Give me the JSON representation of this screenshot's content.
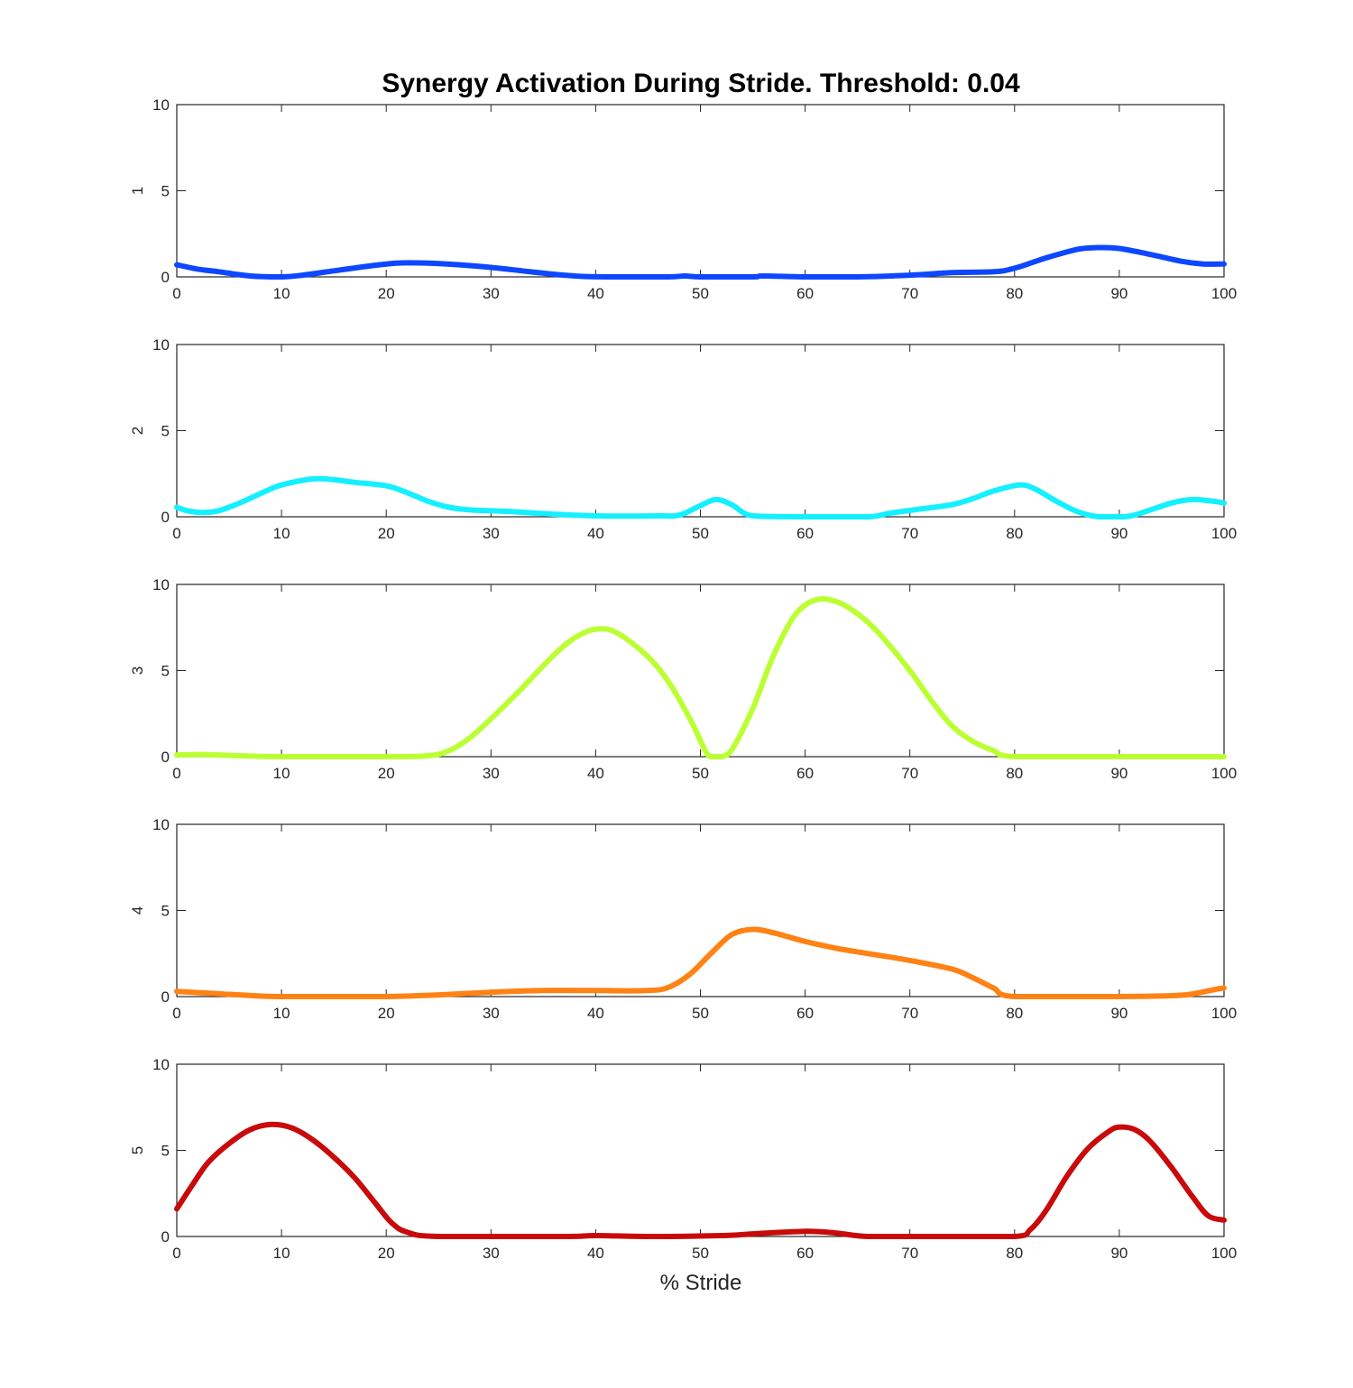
{
  "chart_data": {
    "type": "line",
    "title": "Synergy Activation During Stride. Threshold: 0.04",
    "xlabel": "% Stride",
    "xlim": [
      0,
      100
    ],
    "ylim": [
      0,
      10
    ],
    "x_ticks": [
      "0",
      "10",
      "20",
      "30",
      "40",
      "50",
      "60",
      "70",
      "80",
      "90",
      "100"
    ],
    "y_ticks": [
      "0",
      "5",
      "10"
    ],
    "grid": false,
    "legend": "none",
    "panels": [
      {
        "ylabel": "1",
        "color": "#0d47ff",
        "points": [
          [
            0,
            0.7
          ],
          [
            2,
            0.45
          ],
          [
            4,
            0.3
          ],
          [
            7,
            0.05
          ],
          [
            10,
            0.0
          ],
          [
            12,
            0.1
          ],
          [
            15,
            0.35
          ],
          [
            18,
            0.6
          ],
          [
            21,
            0.8
          ],
          [
            24,
            0.8
          ],
          [
            27,
            0.7
          ],
          [
            30,
            0.55
          ],
          [
            33,
            0.35
          ],
          [
            36,
            0.15
          ],
          [
            39,
            0.02
          ],
          [
            42,
            0.0
          ],
          [
            47,
            0.0
          ],
          [
            48.5,
            0.05
          ],
          [
            50,
            0.0
          ],
          [
            55,
            0.0
          ],
          [
            56,
            0.05
          ],
          [
            60,
            0.0
          ],
          [
            65,
            0.0
          ],
          [
            70,
            0.1
          ],
          [
            74,
            0.25
          ],
          [
            78,
            0.3
          ],
          [
            80,
            0.5
          ],
          [
            83,
            1.1
          ],
          [
            86,
            1.6
          ],
          [
            88,
            1.7
          ],
          [
            90,
            1.65
          ],
          [
            93,
            1.3
          ],
          [
            96,
            0.9
          ],
          [
            98,
            0.75
          ],
          [
            100,
            0.75
          ]
        ]
      },
      {
        "ylabel": "2",
        "color": "#14f0ff",
        "points": [
          [
            0,
            0.55
          ],
          [
            1,
            0.35
          ],
          [
            2.5,
            0.25
          ],
          [
            4,
            0.35
          ],
          [
            6,
            0.8
          ],
          [
            8,
            1.35
          ],
          [
            10,
            1.85
          ],
          [
            13,
            2.2
          ],
          [
            15,
            2.15
          ],
          [
            17,
            2.0
          ],
          [
            20,
            1.8
          ],
          [
            22,
            1.4
          ],
          [
            24,
            0.9
          ],
          [
            26,
            0.55
          ],
          [
            28,
            0.4
          ],
          [
            32,
            0.3
          ],
          [
            36,
            0.15
          ],
          [
            40,
            0.05
          ],
          [
            46,
            0.05
          ],
          [
            48,
            0.1
          ],
          [
            50,
            0.65
          ],
          [
            51.5,
            1.0
          ],
          [
            53,
            0.7
          ],
          [
            55,
            0.05
          ],
          [
            60,
            0.0
          ],
          [
            66,
            0.0
          ],
          [
            68,
            0.2
          ],
          [
            71,
            0.45
          ],
          [
            74,
            0.7
          ],
          [
            76,
            1.05
          ],
          [
            78,
            1.5
          ],
          [
            80.5,
            1.85
          ],
          [
            82,
            1.6
          ],
          [
            84,
            0.9
          ],
          [
            86,
            0.3
          ],
          [
            88,
            0.0
          ],
          [
            90.5,
            0.0
          ],
          [
            92,
            0.2
          ],
          [
            95,
            0.8
          ],
          [
            97,
            1.0
          ],
          [
            99,
            0.9
          ],
          [
            100,
            0.8
          ]
        ]
      },
      {
        "ylabel": "3",
        "color": "#bbff33",
        "points": [
          [
            0,
            0.1
          ],
          [
            3,
            0.12
          ],
          [
            6,
            0.05
          ],
          [
            10,
            0.0
          ],
          [
            20,
            0.0
          ],
          [
            24,
            0.05
          ],
          [
            26,
            0.35
          ],
          [
            28,
            1.1
          ],
          [
            30,
            2.2
          ],
          [
            33,
            4.0
          ],
          [
            36,
            5.9
          ],
          [
            38,
            6.9
          ],
          [
            40,
            7.4
          ],
          [
            42,
            7.2
          ],
          [
            45,
            5.8
          ],
          [
            47,
            4.3
          ],
          [
            49,
            2.2
          ],
          [
            50.5,
            0.3
          ],
          [
            51,
            0.0
          ],
          [
            52,
            0.0
          ],
          [
            53,
            0.4
          ],
          [
            55,
            2.8
          ],
          [
            57,
            5.9
          ],
          [
            59,
            8.2
          ],
          [
            61,
            9.1
          ],
          [
            63,
            9.0
          ],
          [
            65,
            8.3
          ],
          [
            67,
            7.2
          ],
          [
            70,
            5.0
          ],
          [
            72,
            3.3
          ],
          [
            74,
            1.8
          ],
          [
            76,
            0.9
          ],
          [
            78,
            0.35
          ],
          [
            80,
            0.0
          ],
          [
            90,
            0.0
          ],
          [
            100,
            0.0
          ]
        ]
      },
      {
        "ylabel": "4",
        "color": "#ff8214",
        "points": [
          [
            0,
            0.3
          ],
          [
            3,
            0.2
          ],
          [
            6,
            0.1
          ],
          [
            10,
            0.0
          ],
          [
            20,
            0.0
          ],
          [
            25,
            0.1
          ],
          [
            30,
            0.25
          ],
          [
            35,
            0.35
          ],
          [
            40,
            0.35
          ],
          [
            45,
            0.35
          ],
          [
            47,
            0.55
          ],
          [
            49,
            1.3
          ],
          [
            51,
            2.5
          ],
          [
            53,
            3.6
          ],
          [
            55,
            3.9
          ],
          [
            57,
            3.7
          ],
          [
            60,
            3.2
          ],
          [
            63,
            2.8
          ],
          [
            66,
            2.5
          ],
          [
            70,
            2.1
          ],
          [
            74,
            1.6
          ],
          [
            76,
            1.1
          ],
          [
            78,
            0.5
          ],
          [
            80,
            0.0
          ],
          [
            90,
            0.0
          ],
          [
            95,
            0.05
          ],
          [
            97,
            0.15
          ],
          [
            99,
            0.4
          ],
          [
            100,
            0.5
          ]
        ]
      },
      {
        "ylabel": "5",
        "color": "#c80a0a",
        "points": [
          [
            0,
            1.6
          ],
          [
            1.5,
            3.0
          ],
          [
            3,
            4.3
          ],
          [
            5,
            5.4
          ],
          [
            7,
            6.2
          ],
          [
            9,
            6.5
          ],
          [
            11,
            6.3
          ],
          [
            13,
            5.6
          ],
          [
            15,
            4.6
          ],
          [
            17,
            3.4
          ],
          [
            19,
            1.9
          ],
          [
            20.5,
            0.8
          ],
          [
            22,
            0.25
          ],
          [
            25,
            0.0
          ],
          [
            37,
            0.0
          ],
          [
            40,
            0.05
          ],
          [
            45,
            0.0
          ],
          [
            52,
            0.05
          ],
          [
            55,
            0.15
          ],
          [
            60,
            0.3
          ],
          [
            63,
            0.2
          ],
          [
            66,
            0.0
          ],
          [
            72,
            0.0
          ],
          [
            80,
            0.0
          ],
          [
            81.5,
            0.4
          ],
          [
            83,
            1.5
          ],
          [
            85,
            3.5
          ],
          [
            87,
            5.1
          ],
          [
            89,
            6.1
          ],
          [
            90,
            6.35
          ],
          [
            91.5,
            6.2
          ],
          [
            93,
            5.5
          ],
          [
            95,
            4.0
          ],
          [
            97,
            2.3
          ],
          [
            98.5,
            1.2
          ],
          [
            100,
            0.95
          ]
        ]
      }
    ]
  }
}
